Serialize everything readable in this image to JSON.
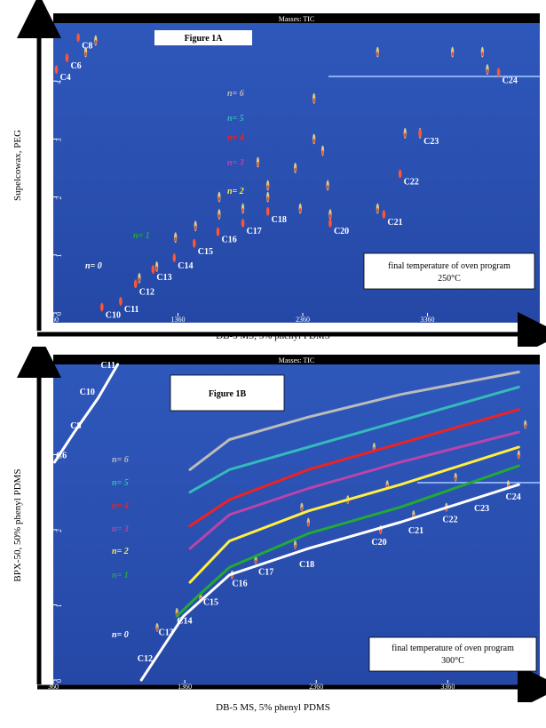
{
  "panels": [
    {
      "figure_label": "Figure 1A",
      "window_title": "Masses: TIC",
      "x_axis_title": "DB-5 MS, 5% phenyl PDMS",
      "y_axis_title": "Supelcowax, PEG",
      "x_ticks": [
        "360",
        "1360",
        "2360",
        "3360"
      ],
      "y_ticks": [
        "0",
        "1",
        "2",
        "3",
        "4"
      ],
      "note_line1": "final temperature of oven program",
      "note_line2": "250°C",
      "series_labels": [
        "n= 0",
        "n= 1",
        "n= 2",
        "n= 3",
        "n= 4",
        "n= 5",
        "n= 6"
      ],
      "compound_labels": [
        "C4",
        "C6",
        "C8",
        "C10",
        "C11",
        "C12",
        "C13",
        "C14",
        "C15",
        "C16",
        "C17",
        "C18",
        "C20",
        "C21",
        "C22",
        "C23",
        "C24"
      ]
    },
    {
      "figure_label": "Figure 1B",
      "window_title": "Masses: TIC",
      "x_axis_title": "DB-5 MS, 5% phenyl PDMS",
      "y_axis_title": "BPX-50, 50% phenyl PDMS",
      "x_ticks": [
        "360",
        "1360",
        "2360",
        "3360"
      ],
      "y_ticks": [
        "0",
        "1",
        "2",
        "3"
      ],
      "note_line1": "final temperature of oven program",
      "note_line2": "300°C",
      "series_labels": [
        "n= 0",
        "n= 1",
        "n= 2",
        "n= 3",
        "n= 4",
        "n= 5",
        "n= 6"
      ],
      "compound_labels": [
        "C6",
        "C8",
        "C10",
        "C11",
        "C12",
        "C13",
        "C14",
        "C15",
        "C16",
        "C17",
        "C18",
        "C20",
        "C21",
        "C22",
        "C23",
        "C24"
      ]
    }
  ],
  "colors": {
    "plot_bg": "#2a4fb0",
    "n0": "#ffffff",
    "n1": "#22aa33",
    "n2": "#ffee44",
    "n3": "#bb44aa",
    "n4": "#ee2222",
    "n5": "#33bbbb",
    "n6": "#bbbbbb"
  },
  "chart_data": [
    {
      "type": "scatter",
      "title": "Figure 1A",
      "xlabel": "DB-5 MS, 5% phenyl PDMS",
      "ylabel": "Supelcowax, PEG",
      "xlim": [
        360,
        4260
      ],
      "ylim": [
        0,
        5
      ],
      "grid": false,
      "series": [
        {
          "name": "n= 0",
          "points": [
            {
              "label": "C4",
              "x": 385,
              "y": 4.2
            },
            {
              "label": "C6",
              "x": 470,
              "y": 4.4
            },
            {
              "label": "C8",
              "x": 560,
              "y": 4.75
            },
            {
              "label": "C10",
              "x": 750,
              "y": 0.1
            },
            {
              "label": "C11",
              "x": 900,
              "y": 0.2
            },
            {
              "label": "C12",
              "x": 1020,
              "y": 0.5
            },
            {
              "label": "C13",
              "x": 1160,
              "y": 0.75
            },
            {
              "label": "C14",
              "x": 1330,
              "y": 0.95
            },
            {
              "label": "C15",
              "x": 1490,
              "y": 1.2
            },
            {
              "label": "C16",
              "x": 1680,
              "y": 1.4
            },
            {
              "label": "C17",
              "x": 1880,
              "y": 1.55
            },
            {
              "label": "C18",
              "x": 2080,
              "y": 1.75
            },
            {
              "label": "C20",
              "x": 2580,
              "y": 1.55
            },
            {
              "label": "C21",
              "x": 3010,
              "y": 1.7
            },
            {
              "label": "C22",
              "x": 3140,
              "y": 2.4
            },
            {
              "label": "C23",
              "x": 3300,
              "y": 3.1
            },
            {
              "label": "C24",
              "x": 3930,
              "y": 4.15
            }
          ]
        }
      ]
    },
    {
      "type": "line",
      "title": "Figure 1B",
      "xlabel": "DB-5 MS, 5% phenyl PDMS",
      "ylabel": "BPX-50, 50% phenyl PDMS",
      "xlim": [
        360,
        4060
      ],
      "ylim": [
        0,
        4.2
      ],
      "grid": false,
      "series": [
        {
          "name": "n= 0",
          "x": [
            1030,
            1350,
            1700,
            2300,
            3000,
            3900
          ],
          "y": [
            0.0,
            0.85,
            1.4,
            1.75,
            2.1,
            2.6
          ]
        },
        {
          "name": "n= 1",
          "x": [
            1300,
            1450,
            1700,
            2300,
            3000,
            3900
          ],
          "y": [
            0.85,
            1.1,
            1.5,
            1.95,
            2.3,
            2.85
          ]
        },
        {
          "name": "n= 2",
          "x": [
            1400,
            1700,
            2300,
            3000,
            3900
          ],
          "y": [
            1.3,
            1.85,
            2.25,
            2.6,
            3.1
          ]
        },
        {
          "name": "n= 3",
          "x": [
            1400,
            1700,
            2300,
            3000,
            3900
          ],
          "y": [
            1.75,
            2.2,
            2.55,
            2.9,
            3.3
          ]
        },
        {
          "name": "n= 4",
          "x": [
            1400,
            1700,
            2300,
            3000,
            3900
          ],
          "y": [
            2.05,
            2.4,
            2.8,
            3.15,
            3.6
          ]
        },
        {
          "name": "n= 5",
          "x": [
            1400,
            1700,
            2300,
            3000,
            3900
          ],
          "y": [
            2.5,
            2.8,
            3.1,
            3.45,
            3.9
          ]
        },
        {
          "name": "n= 6",
          "x": [
            1400,
            1700,
            2300,
            3000,
            3900
          ],
          "y": [
            2.8,
            3.2,
            3.5,
            3.8,
            4.1
          ]
        },
        {
          "name": "",
          "x": [
            370,
            520,
            700,
            850
          ],
          "y": [
            2.9,
            3.3,
            3.75,
            4.2
          ]
        }
      ],
      "labels": [
        {
          "label": "C6",
          "x": 380,
          "y": 2.95
        },
        {
          "label": "C8",
          "x": 490,
          "y": 3.35
        },
        {
          "label": "C10",
          "x": 560,
          "y": 3.8
        },
        {
          "label": "C11",
          "x": 720,
          "y": 4.15
        },
        {
          "label": "C12",
          "x": 1000,
          "y": 0.25
        },
        {
          "label": "C13",
          "x": 1160,
          "y": 0.6
        },
        {
          "label": "C14",
          "x": 1300,
          "y": 0.75
        },
        {
          "label": "C15",
          "x": 1500,
          "y": 1.0
        },
        {
          "label": "C16",
          "x": 1720,
          "y": 1.25
        },
        {
          "label": "C17",
          "x": 1920,
          "y": 1.4
        },
        {
          "label": "C18",
          "x": 2230,
          "y": 1.5
        },
        {
          "label": "C20",
          "x": 2780,
          "y": 1.8
        },
        {
          "label": "C21",
          "x": 3060,
          "y": 1.95
        },
        {
          "label": "C22",
          "x": 3320,
          "y": 2.1
        },
        {
          "label": "C23",
          "x": 3560,
          "y": 2.25
        },
        {
          "label": "C24",
          "x": 3800,
          "y": 2.4
        }
      ]
    }
  ]
}
